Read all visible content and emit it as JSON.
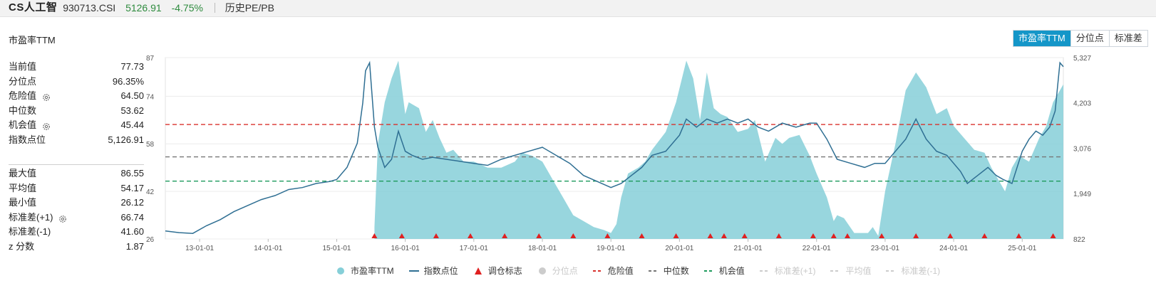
{
  "header": {
    "name": "CS人工智",
    "code": "930713.CSI",
    "price": "5126.91",
    "change": "-4.75%",
    "history_link": "历史PE/PB"
  },
  "panel": {
    "title": "市盈率TTM",
    "tabs": [
      {
        "label": "市盈率TTM",
        "active": true
      },
      {
        "label": "分位点",
        "active": false
      },
      {
        "label": "标准差",
        "active": false
      }
    ]
  },
  "stats_top": [
    {
      "label": "当前值",
      "value": "77.73",
      "gear": false
    },
    {
      "label": "分位点",
      "value": "96.35%",
      "gear": false
    },
    {
      "label": "危险值",
      "value": "64.50",
      "gear": true
    },
    {
      "label": "中位数",
      "value": "53.62",
      "gear": false
    },
    {
      "label": "机会值",
      "value": "45.44",
      "gear": true
    },
    {
      "label": "指数点位",
      "value": "5,126.91",
      "gear": false
    }
  ],
  "stats_bottom": [
    {
      "label": "最大值",
      "value": "86.55",
      "gear": false
    },
    {
      "label": "平均值",
      "value": "54.17",
      "gear": false
    },
    {
      "label": "最小值",
      "value": "26.12",
      "gear": false
    },
    {
      "label": "标准差(+1)",
      "value": "66.74",
      "gear": true
    },
    {
      "label": "标准差(-1)",
      "value": "41.60",
      "gear": false
    },
    {
      "label": "z 分数",
      "value": "1.87",
      "gear": false
    }
  ],
  "legend": [
    {
      "label": "市盈率TTM",
      "symbol": "dot",
      "color": "#86cfd8",
      "active": true
    },
    {
      "label": "指数点位",
      "symbol": "line",
      "color": "#2f6f93",
      "active": true
    },
    {
      "label": "调仓标志",
      "symbol": "triangle",
      "color": "#e02020",
      "active": true
    },
    {
      "label": "分位点",
      "symbol": "dot",
      "color": "#cccccc",
      "active": false
    },
    {
      "label": "危险值",
      "symbol": "dash",
      "color": "#d9302c",
      "active": true
    },
    {
      "label": "中位数",
      "symbol": "dash",
      "color": "#777777",
      "active": true
    },
    {
      "label": "机会值",
      "symbol": "dash",
      "color": "#1d9a5c",
      "active": true
    },
    {
      "label": "标准差(+1)",
      "symbol": "dash",
      "color": "#cccccc",
      "active": false
    },
    {
      "label": "平均值",
      "symbol": "dash",
      "color": "#cccccc",
      "active": false
    },
    {
      "label": "标准差(-1)",
      "symbol": "dash",
      "color": "#cccccc",
      "active": false
    }
  ],
  "chart_data": {
    "type": "area",
    "x_ticks": [
      "13-01-01",
      "14-01-01",
      "15-01-01",
      "16-01-01",
      "17-01-01",
      "18-01-01",
      "19-01-01",
      "20-01-01",
      "21-01-01",
      "22-01-01",
      "23-01-01",
      "24-01-01",
      "25-01-01"
    ],
    "x_range": [
      2012.5,
      2025.6
    ],
    "left_axis": {
      "ticks": [
        "87",
        "74",
        "58",
        "42",
        "26"
      ],
      "ylim": [
        26,
        87
      ]
    },
    "right_axis": {
      "ticks": [
        "5,327",
        "4,203",
        "3,076",
        "1,949",
        "822"
      ],
      "ylim": [
        822,
        5327
      ]
    },
    "reference_lines": [
      {
        "name": "危险值",
        "value": 64.5,
        "color": "#d9302c"
      },
      {
        "name": "中位数",
        "value": 53.62,
        "color": "#777777"
      },
      {
        "name": "机会值",
        "value": 45.44,
        "color": "#1d9a5c"
      }
    ],
    "series": [
      {
        "name": "市盈率TTM",
        "axis": "left",
        "color": "#86cfd8",
        "x": [
          2015.55,
          2015.6,
          2015.7,
          2015.8,
          2015.9,
          2016.0,
          2016.05,
          2016.2,
          2016.3,
          2016.4,
          2016.5,
          2016.6,
          2016.7,
          2016.85,
          2017.0,
          2017.2,
          2017.4,
          2017.6,
          2017.7,
          2017.85,
          2018.0,
          2018.2,
          2018.3,
          2018.45,
          2018.6,
          2018.75,
          2018.9,
          2019.0,
          2019.08,
          2019.15,
          2019.25,
          2019.4,
          2019.5,
          2019.6,
          2019.8,
          2019.95,
          2020.1,
          2020.2,
          2020.3,
          2020.4,
          2020.5,
          2020.6,
          2020.7,
          2020.85,
          2021.0,
          2021.1,
          2021.25,
          2021.4,
          2021.5,
          2021.6,
          2021.75,
          2021.9,
          2022.0,
          2022.15,
          2022.25,
          2022.3,
          2022.4,
          2022.55,
          2022.65,
          2022.75,
          2022.82,
          2022.9,
          2023.0,
          2023.15,
          2023.3,
          2023.45,
          2023.6,
          2023.75,
          2023.9,
          2024.0,
          2024.15,
          2024.3,
          2024.45,
          2024.55,
          2024.65,
          2024.75,
          2024.85,
          2024.95,
          2025.1,
          2025.25,
          2025.35,
          2025.45,
          2025.55,
          2025.6
        ],
        "values": [
          30,
          58,
          72,
          80,
          86,
          68,
          72,
          70,
          62,
          66,
          60,
          55,
          56,
          52,
          52,
          50,
          50,
          52,
          55,
          54,
          52,
          44,
          40,
          34,
          32,
          30,
          29,
          28,
          31,
          40,
          48,
          50,
          52,
          56,
          62,
          72,
          86,
          80,
          66,
          82,
          70,
          68,
          67,
          62,
          63,
          66,
          52,
          60,
          58,
          60,
          61,
          54,
          48,
          40,
          32,
          34,
          33,
          28,
          28,
          28,
          30,
          27,
          42,
          58,
          76,
          82,
          77,
          68,
          70,
          64,
          60,
          56,
          55,
          50,
          46,
          42,
          50,
          54,
          52,
          60,
          64,
          72,
          76,
          78
        ]
      },
      {
        "name": "指数点位",
        "axis": "right",
        "color": "#2f6f93",
        "x": [
          2012.5,
          2012.7,
          2012.9,
          2013.1,
          2013.3,
          2013.5,
          2013.7,
          2013.9,
          2014.1,
          2014.3,
          2014.5,
          2014.7,
          2014.9,
          2015.0,
          2015.15,
          2015.3,
          2015.38,
          2015.42,
          2015.48,
          2015.55,
          2015.6,
          2015.7,
          2015.8,
          2015.9,
          2016.0,
          2016.1,
          2016.25,
          2016.4,
          2016.6,
          2016.8,
          2017.0,
          2017.2,
          2017.4,
          2017.6,
          2017.8,
          2018.0,
          2018.2,
          2018.4,
          2018.6,
          2018.8,
          2019.0,
          2019.15,
          2019.3,
          2019.45,
          2019.6,
          2019.8,
          2020.0,
          2020.1,
          2020.25,
          2020.4,
          2020.55,
          2020.7,
          2020.85,
          2021.0,
          2021.15,
          2021.3,
          2021.5,
          2021.7,
          2021.9,
          2022.0,
          2022.15,
          2022.3,
          2022.5,
          2022.7,
          2022.85,
          2023.0,
          2023.15,
          2023.3,
          2023.45,
          2023.6,
          2023.75,
          2023.9,
          2024.0,
          2024.1,
          2024.2,
          2024.35,
          2024.5,
          2024.62,
          2024.72,
          2024.85,
          2025.0,
          2025.1,
          2025.2,
          2025.3,
          2025.4,
          2025.48,
          2025.55,
          2025.6
        ],
        "values": [
          1020,
          980,
          960,
          1150,
          1300,
          1500,
          1650,
          1800,
          1900,
          2050,
          2100,
          2200,
          2250,
          2300,
          2600,
          3200,
          4200,
          5000,
          5200,
          3600,
          3100,
          2600,
          2800,
          3500,
          3000,
          2900,
          2800,
          2850,
          2800,
          2750,
          2700,
          2650,
          2800,
          2900,
          3000,
          3100,
          2900,
          2700,
          2400,
          2250,
          2100,
          2200,
          2400,
          2600,
          2900,
          3000,
          3400,
          3800,
          3600,
          3800,
          3700,
          3800,
          3700,
          3800,
          3600,
          3500,
          3700,
          3600,
          3700,
          3700,
          3300,
          2800,
          2700,
          2600,
          2700,
          2700,
          3000,
          3300,
          3800,
          3300,
          3000,
          2900,
          2700,
          2500,
          2200,
          2400,
          2600,
          2400,
          2300,
          2200,
          3000,
          3300,
          3500,
          3400,
          3600,
          4000,
          5200,
          5100
        ]
      },
      {
        "name": "调仓标志",
        "type": "markers",
        "x": [
          2015.55,
          2015.95,
          2016.45,
          2016.95,
          2017.45,
          2017.95,
          2018.45,
          2018.95,
          2019.45,
          2019.95,
          2020.45,
          2020.65,
          2020.95,
          2021.45,
          2021.95,
          2022.25,
          2022.45,
          2022.95,
          2023.45,
          2023.95,
          2024.45,
          2024.95,
          2025.45
        ]
      }
    ]
  }
}
